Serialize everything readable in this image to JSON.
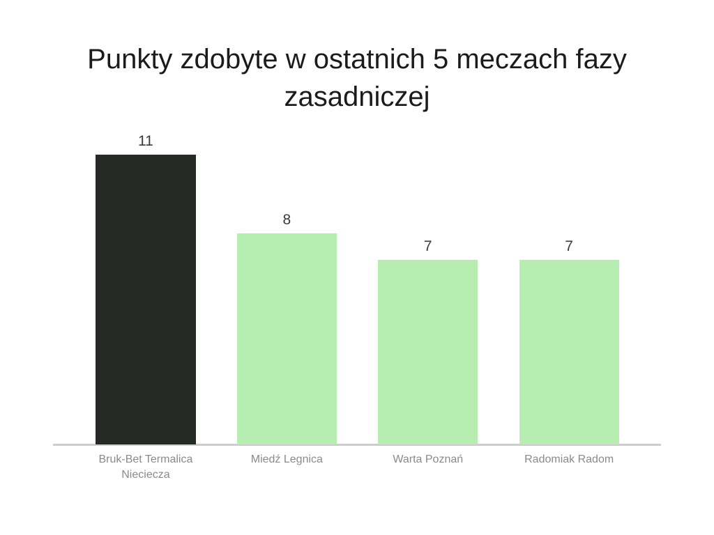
{
  "page": {
    "background_color": "#ffffff"
  },
  "chart_data": {
    "type": "bar",
    "title": "Punkty zdobyte w ostatnich 5 meczach fazy zasadniczej",
    "title_lines": [
      "Punkty zdobyte w ostatnich 5 meczach fazy",
      "zasadniczej"
    ],
    "categories": [
      "Bruk-Bet Termalica Nieciecza",
      "Miedź Legnica",
      "Warta Poznań",
      "Radomiak Radom"
    ],
    "values": [
      11,
      8,
      7,
      7
    ],
    "value_labels": [
      "11",
      "8",
      "7",
      "7"
    ],
    "bar_colors": [
      "#262a24",
      "#b8edb2",
      "#b8edb2",
      "#b8edb2"
    ],
    "xlabel": "",
    "ylabel": "",
    "ylim": [
      0,
      11
    ],
    "grid": false,
    "legend": false,
    "y_axis_visible": false,
    "x_axis_line_color": "#cdcdcd",
    "title_color": "#1b1b1b",
    "value_label_color": "#3a3a3a",
    "category_label_color": "#8a8a8a"
  }
}
